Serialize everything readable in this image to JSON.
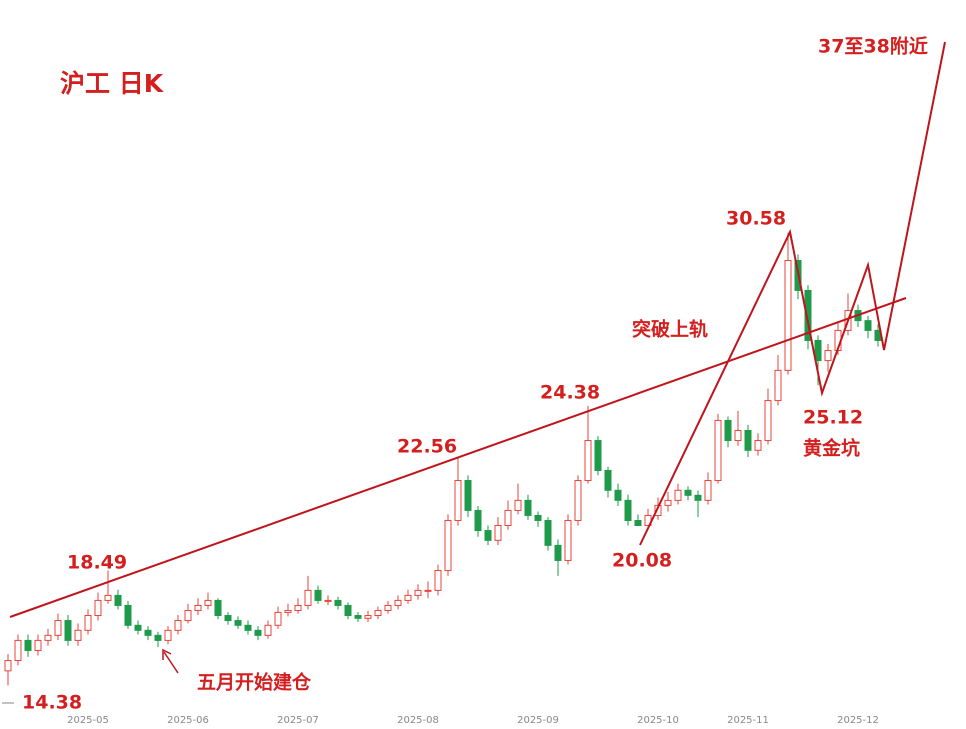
{
  "chart_data": {
    "type": "candlestick",
    "title": "沪工 日K",
    "categories": [
      null,
      null,
      null,
      null,
      null,
      null,
      null,
      null,
      "2025-05",
      null,
      null,
      null,
      null,
      null,
      null,
      null,
      null,
      null,
      "2025-06",
      null,
      null,
      null,
      null,
      null,
      null,
      null,
      null,
      null,
      null,
      "2025-07",
      null,
      null,
      null,
      null,
      null,
      null,
      null,
      null,
      null,
      null,
      null,
      "2025-08",
      null,
      null,
      null,
      null,
      null,
      null,
      null,
      null,
      null,
      null,
      null,
      "2025-09",
      null,
      null,
      null,
      null,
      null,
      null,
      null,
      null,
      null,
      null,
      null,
      "2025-10",
      null,
      null,
      null,
      null,
      null,
      null,
      null,
      null,
      "2025-11",
      null,
      null,
      null,
      null,
      null,
      null,
      null,
      null,
      null,
      null,
      "2025-12",
      null,
      null
    ],
    "open": [
      14.9,
      15.27,
      15.99,
      15.63,
      15.99,
      16.17,
      16.7,
      15.99,
      16.35,
      16.88,
      17.42,
      17.6,
      17.24,
      16.53,
      16.35,
      16.17,
      15.99,
      16.35,
      16.7,
      17.06,
      17.24,
      17.42,
      16.88,
      16.7,
      16.53,
      16.35,
      16.17,
      16.53,
      16.99,
      17.06,
      17.24,
      17.78,
      17.42,
      17.42,
      17.24,
      16.88,
      16.78,
      16.88,
      17.06,
      17.24,
      17.42,
      17.6,
      17.78,
      17.78,
      18.49,
      20.28,
      21.71,
      20.64,
      19.92,
      19.57,
      20.1,
      20.64,
      21.0,
      20.46,
      20.28,
      19.39,
      18.85,
      20.28,
      21.71,
      23.14,
      22.07,
      21.36,
      21.0,
      20.28,
      20.1,
      20.46,
      20.82,
      21.0,
      21.36,
      21.18,
      21.0,
      21.71,
      23.86,
      23.14,
      23.5,
      22.79,
      23.14,
      24.57,
      25.65,
      29.58,
      28.51,
      26.72,
      26.0,
      26.36,
      27.08,
      27.79,
      27.43,
      27.08
    ],
    "high": [
      15.5,
      16.2,
      16.2,
      16.2,
      16.4,
      16.95,
      16.9,
      16.6,
      17.1,
      17.7,
      18.49,
      17.8,
      17.4,
      16.7,
      16.5,
      16.3,
      16.5,
      16.9,
      17.3,
      17.5,
      17.7,
      17.5,
      17.0,
      16.85,
      16.7,
      16.5,
      16.7,
      17.2,
      17.3,
      17.5,
      18.3,
      17.95,
      17.6,
      17.55,
      17.35,
      17.0,
      17.05,
      17.2,
      17.4,
      17.6,
      17.8,
      18.0,
      18.1,
      18.7,
      20.5,
      22.56,
      21.9,
      20.8,
      20.1,
      20.4,
      21.0,
      21.6,
      21.2,
      20.6,
      20.4,
      19.6,
      20.5,
      21.9,
      24.38,
      23.3,
      22.2,
      21.6,
      21.2,
      20.5,
      20.7,
      21.1,
      21.3,
      21.6,
      21.5,
      21.35,
      22.0,
      24.1,
      24.0,
      24.2,
      23.7,
      23.4,
      25.0,
      26.2,
      30.58,
      29.8,
      28.7,
      26.9,
      26.6,
      27.4,
      28.4,
      28.0,
      27.6,
      27.3
    ],
    "low": [
      14.38,
      15.1,
      15.4,
      15.45,
      15.8,
      16.0,
      15.8,
      15.8,
      16.2,
      16.7,
      17.3,
      17.1,
      16.4,
      16.2,
      16.0,
      15.75,
      15.85,
      16.2,
      16.6,
      16.9,
      17.1,
      16.75,
      16.55,
      16.4,
      16.2,
      16.0,
      16.05,
      16.4,
      16.85,
      16.95,
      17.1,
      17.3,
      17.25,
      17.1,
      16.75,
      16.65,
      16.65,
      16.75,
      16.95,
      17.1,
      17.3,
      17.45,
      17.5,
      17.6,
      18.3,
      20.1,
      20.4,
      19.7,
      19.4,
      19.4,
      19.95,
      20.5,
      20.3,
      20.05,
      19.2,
      18.3,
      18.7,
      20.1,
      21.6,
      21.9,
      21.1,
      20.8,
      20.1,
      20.08,
      20.15,
      20.3,
      20.6,
      20.85,
      21.0,
      20.4,
      20.85,
      21.6,
      22.9,
      22.95,
      22.55,
      22.6,
      23.0,
      24.4,
      25.5,
      28.2,
      26.4,
      25.12,
      25.6,
      26.2,
      26.9,
      27.2,
      26.8,
      26.5
    ],
    "close": [
      15.27,
      15.99,
      15.63,
      15.99,
      16.17,
      16.7,
      15.99,
      16.35,
      16.88,
      17.42,
      17.6,
      17.24,
      16.53,
      16.35,
      16.17,
      15.99,
      16.35,
      16.7,
      17.06,
      17.24,
      17.42,
      16.88,
      16.7,
      16.53,
      16.35,
      16.17,
      16.53,
      16.99,
      17.06,
      17.24,
      17.78,
      17.42,
      17.42,
      17.24,
      16.88,
      16.78,
      16.88,
      17.06,
      17.24,
      17.42,
      17.6,
      17.78,
      17.78,
      18.49,
      20.28,
      21.71,
      20.64,
      19.92,
      19.57,
      20.1,
      20.64,
      21.0,
      20.46,
      20.28,
      19.39,
      18.85,
      20.28,
      21.71,
      23.14,
      22.07,
      21.36,
      21.0,
      20.28,
      20.1,
      20.46,
      20.82,
      21.0,
      21.36,
      21.18,
      21.0,
      21.71,
      23.86,
      23.14,
      23.5,
      22.79,
      23.14,
      24.57,
      25.65,
      29.58,
      28.51,
      26.72,
      26.0,
      26.36,
      27.08,
      27.79,
      27.43,
      27.08,
      26.72
    ],
    "up_color": "#e8453c",
    "down_color": "#1e9a4a",
    "ylim": [
      13.5,
      38.9
    ],
    "annotations": [
      "14.38",
      "18.49",
      "22.56",
      "24.38",
      "20.08",
      "30.58",
      "25.12",
      "黄金坑",
      "突破上轨",
      "五月开始建仓",
      "37至38附近"
    ]
  }
}
